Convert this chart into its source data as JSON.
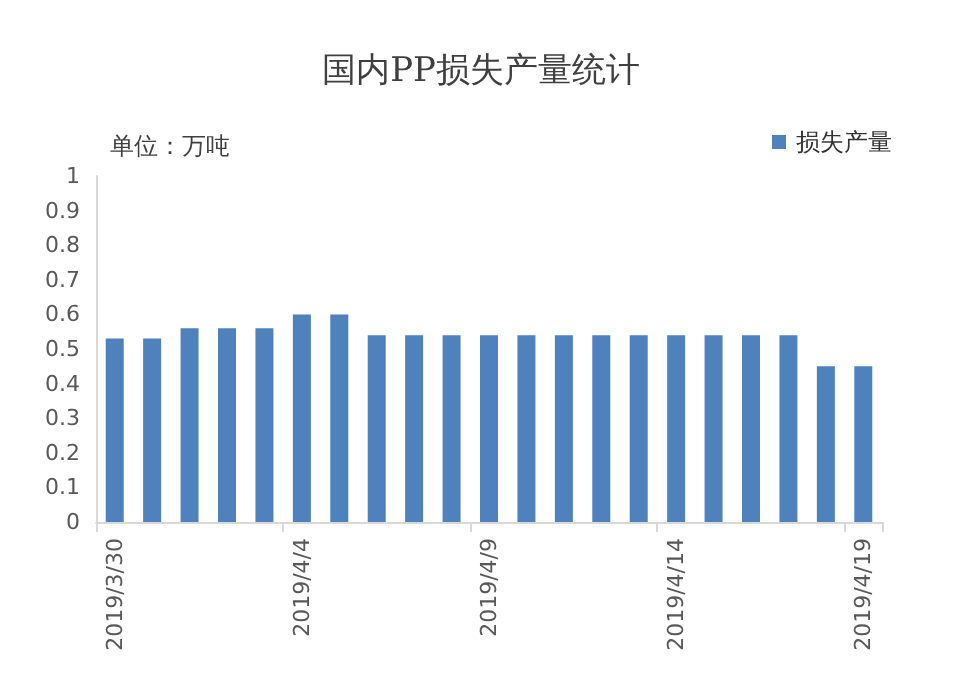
{
  "chart_data": {
    "type": "bar",
    "title": "国内PP损失产量统计",
    "annotations": [
      "单位：万吨"
    ],
    "categories": [
      "2019/3/30",
      null,
      null,
      null,
      null,
      "2019/4/4",
      null,
      null,
      null,
      null,
      "2019/4/9",
      null,
      null,
      null,
      null,
      "2019/4/14",
      null,
      null,
      null,
      null,
      "2019/4/19"
    ],
    "series": [
      {
        "name": "损失产量",
        "color": "#4f81bd",
        "values": [
          0.53,
          0.53,
          0.56,
          0.56,
          0.56,
          0.6,
          0.6,
          0.54,
          0.54,
          0.54,
          0.54,
          0.54,
          0.54,
          0.54,
          0.54,
          0.54,
          0.54,
          0.54,
          0.54,
          0.45,
          0.45
        ]
      }
    ],
    "ylim": [
      0,
      1
    ],
    "yticks": [
      0,
      0.1,
      0.2,
      0.3,
      0.4,
      0.5,
      0.6,
      0.7,
      0.8,
      0.9,
      1
    ],
    "grid": false,
    "legend": "top right"
  }
}
